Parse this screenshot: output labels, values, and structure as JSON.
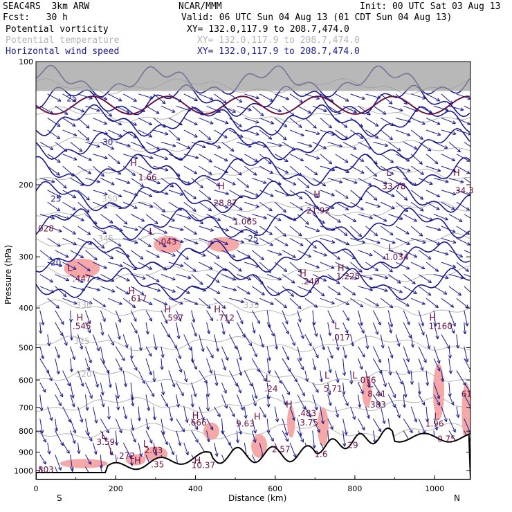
{
  "header": {
    "model": "SEAC4RS  3km ARW",
    "center": "NCAR/MMM",
    "init": "Init: 00 UTC Sat 03 Aug 13",
    "fcst": "Fcst:   30 h",
    "valid": "Valid: 06 UTC Sun 04 Aug 13 (01 CDT Sun 04 Aug 13)"
  },
  "fields": [
    {
      "name": "Potential vorticity",
      "xy": "XY= 132.0,117.9 to 208.7,474.0",
      "color": "#000000"
    },
    {
      "name": "Potential temperature",
      "xy": "XY= 132.0,117.9 to 208.7,474.0",
      "color": "#b4b4b4"
    },
    {
      "name": "Horizontal wind speed",
      "xy": "XY= 132.0,117.9 to 208.7,474.0",
      "color": "#1a1a8c"
    }
  ],
  "colors": {
    "pv_fill": "#f4a8a8",
    "pv_dark": "#6b1040",
    "theta": "#b4b4b4",
    "wind": "#1a1a8c",
    "terrain": "#000000"
  },
  "chart_data": {
    "type": "line",
    "xlabel": "Distance (km)",
    "ylabel": "Pressure (hPa)",
    "xlim": [
      0,
      1090
    ],
    "ylim": [
      1050,
      100
    ],
    "y_scale": "log",
    "x_ticks": [
      "0",
      "200",
      "400",
      "600",
      "800",
      "1000"
    ],
    "y_ticks": [
      "100",
      "200",
      "300",
      "400",
      "500",
      "600",
      "700",
      "800",
      "900",
      "1000"
    ],
    "left_end_label": "S",
    "right_end_label": "N",
    "theta_labels": [
      {
        "text": "325",
        "x": 115,
        "p": 490
      },
      {
        "text": "320",
        "x": 120,
        "p": 590
      },
      {
        "text": "330",
        "x": 120,
        "p": 400
      },
      {
        "text": "335",
        "x": 540,
        "p": 400
      },
      {
        "text": "345",
        "x": 175,
        "p": 275
      },
      {
        "text": "350",
        "x": 185,
        "p": 220
      }
    ],
    "wind_labels": [
      {
        "text": "25",
        "x": 90,
        "p": 125
      },
      {
        "text": "30",
        "x": 180,
        "p": 160
      },
      {
        "text": "25",
        "x": 50,
        "p": 220
      },
      {
        "text": "20",
        "x": 50,
        "p": 315
      },
      {
        "text": "25",
        "x": 545,
        "p": 275
      }
    ],
    "pv_labels": [
      {
        "text": "028",
        "x": 25,
        "p": 260
      },
      {
        "text": ".447",
        "x": 115,
        "p": 345
      },
      {
        "text": ".043",
        "x": 330,
        "p": 280
      },
      {
        "text": "28.87",
        "x": 475,
        "p": 225
      },
      {
        "text": "1.065",
        "x": 525,
        "p": 250
      },
      {
        "text": "21.92",
        "x": 708,
        "p": 235
      },
      {
        "text": "33.78",
        "x": 898,
        "p": 205
      },
      {
        "text": "34.3",
        "x": 1075,
        "p": 210
      },
      {
        "text": "1.034",
        "x": 905,
        "p": 305
      },
      {
        "text": ".240",
        "x": 688,
        "p": 350
      },
      {
        "text": "1.225",
        "x": 783,
        "p": 340
      },
      {
        "text": "1.66",
        "x": 280,
        "p": 195
      },
      {
        "text": ".545",
        "x": 115,
        "p": 450
      },
      {
        "text": ".617",
        "x": 255,
        "p": 385
      },
      {
        "text": ".597",
        "x": 347,
        "p": 430
      },
      {
        "text": ".712",
        "x": 475,
        "p": 430
      },
      {
        "text": ".017",
        "x": 765,
        "p": 480
      },
      {
        "text": "1.160",
        "x": 1015,
        "p": 450
      },
      {
        "text": ".24",
        "x": 590,
        "p": 640
      },
      {
        "text": "5.71",
        "x": 745,
        "p": 640
      },
      {
        "text": ".076",
        "x": 830,
        "p": 610
      },
      {
        "text": "8.41",
        "x": 855,
        "p": 660
      },
      {
        "text": ".383",
        "x": 855,
        "p": 700
      },
      {
        "text": ".483",
        "x": 680,
        "p": 735
      },
      {
        "text": "3.75",
        "x": 685,
        "p": 775
      },
      {
        "text": ".666",
        "x": 405,
        "p": 775
      },
      {
        "text": "9.63",
        "x": 525,
        "p": 780
      },
      {
        "text": "61",
        "x": 1080,
        "p": 660
      },
      {
        "text": "1.96",
        "x": 1000,
        "p": 780
      },
      {
        "text": "0.75",
        "x": 1030,
        "p": 850
      },
      {
        "text": "3.59",
        "x": 175,
        "p": 865
      },
      {
        "text": "2.03",
        "x": 295,
        "p": 905
      },
      {
        "text": ".272",
        "x": 225,
        "p": 935
      },
      {
        "text": ".35",
        "x": 305,
        "p": 980
      },
      {
        "text": "10.37",
        "x": 420,
        "p": 985
      },
      {
        "text": "2.57",
        "x": 615,
        "p": 900
      },
      {
        "text": "1.6",
        "x": 715,
        "p": 925
      },
      {
        "text": "29",
        "x": 795,
        "p": 880
      },
      {
        "text": "803",
        "x": 25,
        "p": 1010
      }
    ],
    "hl_markers": [
      {
        "text": "H",
        "x": 245,
        "p": 180
      },
      {
        "text": "H",
        "x": 465,
        "p": 205
      },
      {
        "text": "L",
        "x": 290,
        "p": 265
      },
      {
        "text": "H",
        "x": 705,
        "p": 215
      },
      {
        "text": "L",
        "x": 885,
        "p": 190
      },
      {
        "text": "H",
        "x": 1055,
        "p": 190
      },
      {
        "text": "L",
        "x": 890,
        "p": 290
      },
      {
        "text": "L",
        "x": 85,
        "p": 325
      },
      {
        "text": "H",
        "x": 670,
        "p": 335
      },
      {
        "text": "H",
        "x": 765,
        "p": 325
      },
      {
        "text": "H",
        "x": 110,
        "p": 430
      },
      {
        "text": "H",
        "x": 240,
        "p": 370
      },
      {
        "text": "H",
        "x": 330,
        "p": 410
      },
      {
        "text": "H",
        "x": 455,
        "p": 410
      },
      {
        "text": "L",
        "x": 755,
        "p": 450
      },
      {
        "text": "H",
        "x": 995,
        "p": 430
      },
      {
        "text": "L",
        "x": 582,
        "p": 605
      },
      {
        "text": "L",
        "x": 730,
        "p": 595
      },
      {
        "text": "L",
        "x": 800,
        "p": 595
      },
      {
        "text": "L",
        "x": 840,
        "p": 625
      },
      {
        "text": "H",
        "x": 635,
        "p": 700
      },
      {
        "text": "H",
        "x": 400,
        "p": 745
      },
      {
        "text": "H",
        "x": 555,
        "p": 750
      },
      {
        "text": "L",
        "x": 1005,
        "p": 750
      },
      {
        "text": "L",
        "x": 170,
        "p": 835
      },
      {
        "text": "L",
        "x": 275,
        "p": 875
      },
      {
        "text": "L",
        "x": 190,
        "p": 915
      },
      {
        "text": "H",
        "x": 255,
        "p": 960
      },
      {
        "text": "H",
        "x": 405,
        "p": 960
      }
    ]
  }
}
